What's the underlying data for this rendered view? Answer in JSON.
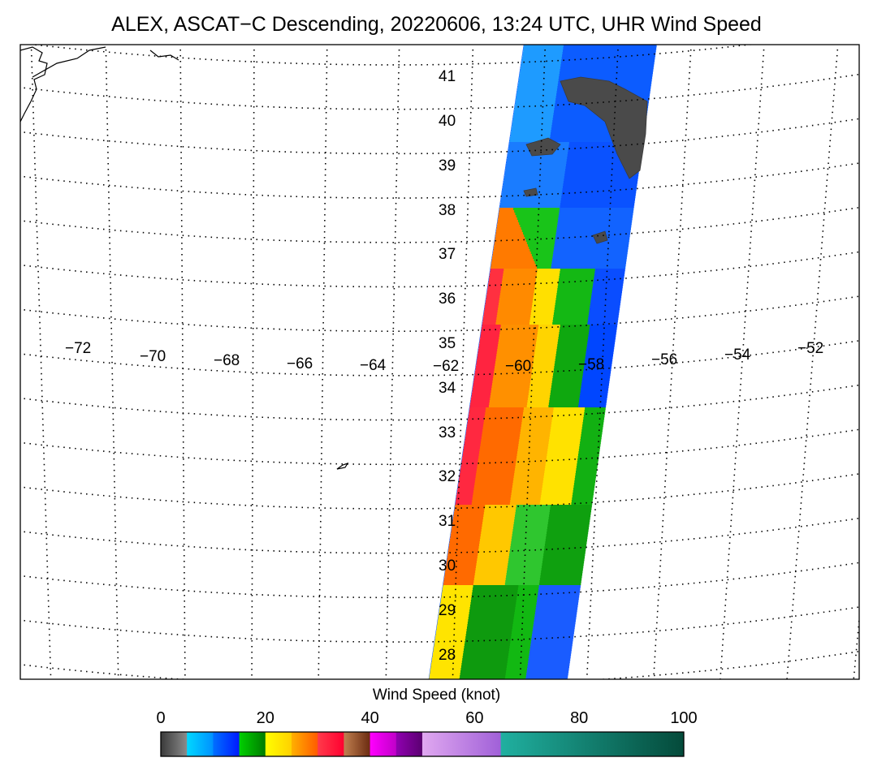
{
  "title": "ALEX, ASCAT−C Descending, 20220606, 13:24 UTC, UHR Wind Speed",
  "map": {
    "lat_labels": [
      "41",
      "40",
      "39",
      "38",
      "37",
      "36",
      "35",
      "34",
      "33",
      "32",
      "31",
      "30",
      "29",
      "28"
    ],
    "lon_labels": [
      "−72",
      "−70",
      "−68",
      "−66",
      "−64",
      "−62",
      "−60",
      "−58",
      "−56",
      "−54",
      "−52"
    ],
    "gridlines": "dotted",
    "swath": "ASCAT-C descending pass",
    "no_data_color": "#ffffff"
  },
  "colorbar": {
    "title": "Wind Speed (knot)",
    "tick_labels": [
      "0",
      "20",
      "40",
      "60",
      "80",
      "100"
    ],
    "tick_values": [
      0,
      20,
      40,
      60,
      80,
      100
    ],
    "min": 0,
    "max": 100,
    "segments": [
      {
        "from": 0,
        "to": 5,
        "color": "#3a3a3a",
        "color2": "#8c8c8c"
      },
      {
        "from": 5,
        "to": 10,
        "color": "#00d8ff",
        "color2": "#0090ff"
      },
      {
        "from": 10,
        "to": 15,
        "color": "#0070ff",
        "color2": "#0018ff"
      },
      {
        "from": 15,
        "to": 20,
        "color": "#00d000",
        "color2": "#007a00"
      },
      {
        "from": 20,
        "to": 25,
        "color": "#ffff00",
        "color2": "#ffd000"
      },
      {
        "from": 25,
        "to": 30,
        "color": "#ffb000",
        "color2": "#ff5a00"
      },
      {
        "from": 30,
        "to": 35,
        "color": "#ff3a4a",
        "color2": "#ff0030"
      },
      {
        "from": 35,
        "to": 40,
        "color": "#c08050",
        "color2": "#6a2a10"
      },
      {
        "from": 40,
        "to": 45,
        "color": "#ff00ff",
        "color2": "#c000c8"
      },
      {
        "from": 45,
        "to": 50,
        "color": "#9000b0",
        "color2": "#5a0070"
      },
      {
        "from": 50,
        "to": 65,
        "color": "#e0a8f0",
        "color2": "#a060d8"
      },
      {
        "from": 65,
        "to": 100,
        "color": "#20b0a0",
        "color2": "#044a3a"
      }
    ]
  }
}
